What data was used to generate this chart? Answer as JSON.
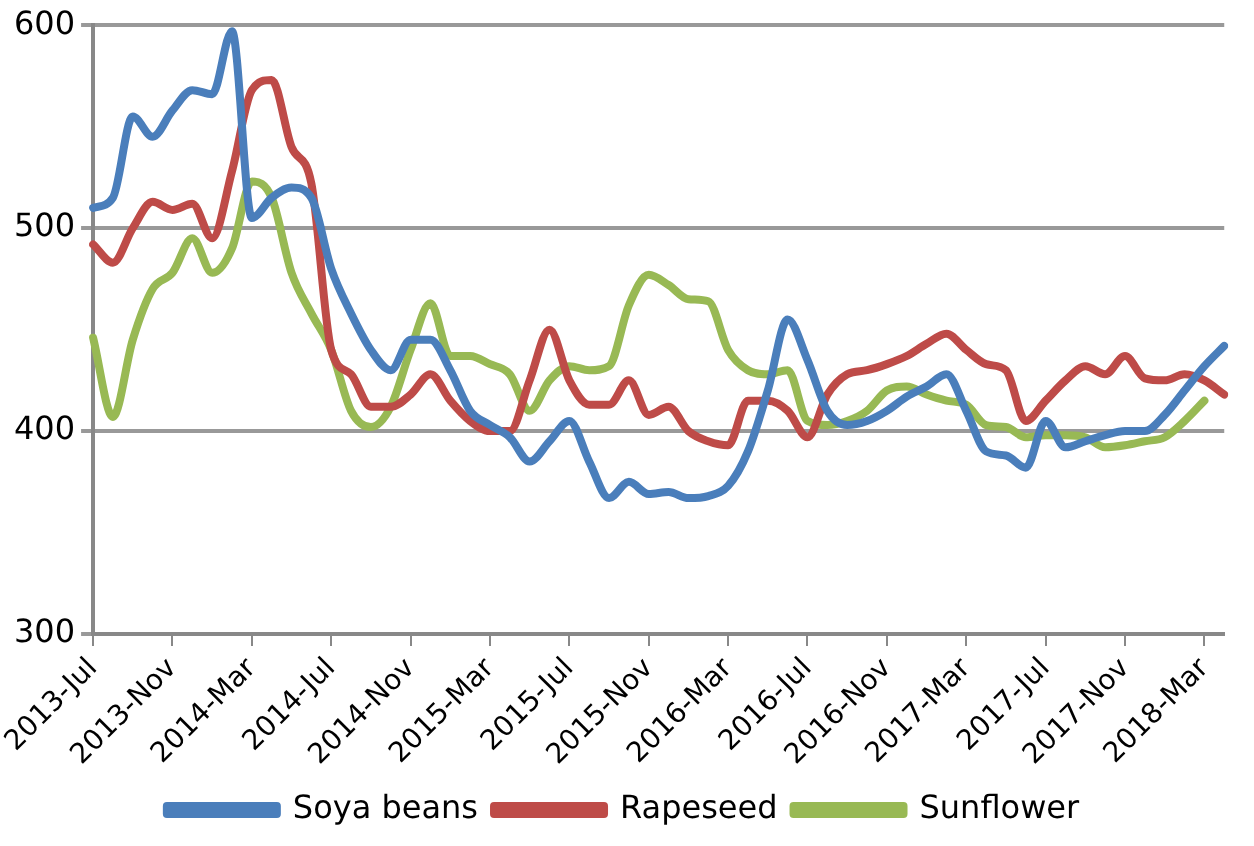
{
  "chart_data": {
    "type": "line",
    "categories": [
      "2013-Jul",
      null,
      null,
      null,
      "2013-Nov",
      null,
      null,
      null,
      "2014-Mar",
      null,
      null,
      null,
      "2014-Jul",
      null,
      null,
      null,
      "2014-Nov",
      null,
      null,
      null,
      "2015-Mar",
      null,
      null,
      null,
      "2015-Jul",
      null,
      null,
      null,
      "2015-Nov",
      null,
      null,
      null,
      "2016-Mar",
      null,
      null,
      null,
      "2016-Jul",
      null,
      null,
      null,
      "2016-Nov",
      null,
      null,
      null,
      "2017-Mar",
      null,
      null,
      null,
      "2017-Jul",
      null,
      null,
      null,
      "2017-Nov",
      null,
      null,
      null,
      "2018-Mar",
      null
    ],
    "series": [
      {
        "name": "Soya beans",
        "color": "#4a7ebb",
        "values": [
          510,
          515,
          555,
          545,
          558,
          568,
          566,
          597,
          505,
          515,
          520,
          515,
          480,
          458,
          440,
          430,
          445,
          445,
          430,
          410,
          403,
          397,
          385,
          395,
          405,
          385,
          367,
          375,
          369,
          370,
          367,
          368,
          373,
          390,
          420,
          455,
          435,
          410,
          403,
          405,
          410,
          417,
          422,
          428,
          410,
          390,
          388,
          382,
          405,
          392,
          395,
          398,
          400,
          400,
          408,
          420,
          432,
          442
        ]
      },
      {
        "name": "Rapeseed",
        "color": "#be4b48",
        "values": [
          492,
          483,
          500,
          513,
          509,
          512,
          495,
          528,
          568,
          573,
          540,
          522,
          440,
          428,
          412,
          412,
          418,
          428,
          415,
          405,
          400,
          400,
          425,
          450,
          425,
          413,
          413,
          425,
          408,
          412,
          400,
          395,
          393,
          415,
          415,
          410,
          397,
          418,
          428,
          430,
          433,
          437,
          443,
          448,
          440,
          433,
          430,
          405,
          415,
          425,
          432,
          428,
          437,
          426,
          425,
          428,
          425,
          418
        ]
      },
      {
        "name": "Sunflower",
        "color": "#98b954",
        "values": [
          446,
          407,
          445,
          470,
          478,
          495,
          478,
          490,
          523,
          515,
          478,
          458,
          440,
          410,
          402,
          412,
          440,
          463,
          437,
          437,
          433,
          428,
          410,
          425,
          432,
          430,
          432,
          462,
          477,
          472,
          465,
          464,
          440,
          430,
          428,
          430,
          405,
          403,
          405,
          410,
          420,
          422,
          418,
          415,
          413,
          403,
          402,
          397,
          398,
          398,
          397,
          392,
          393,
          395,
          397,
          405,
          415,
          null
        ]
      }
    ],
    "ylim": [
      300,
      600
    ],
    "yticks": [
      300,
      400,
      500,
      600
    ],
    "grid": "y",
    "legend": "bottom",
    "marker": "none",
    "line_style": "solid"
  }
}
